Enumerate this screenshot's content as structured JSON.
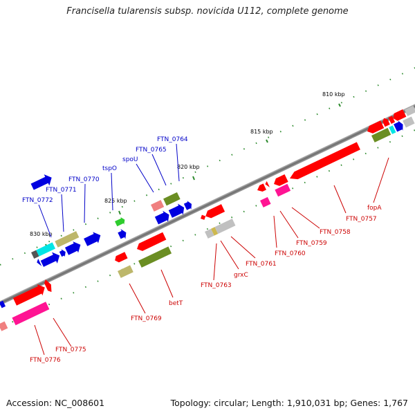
{
  "title": "Francisella tularensis subsp. novicida U112, complete genome",
  "footer": {
    "accession": "Accession: NC_008601",
    "topology": "Topology: circular; Length: 1,910,031 bp; Genes: 1,767"
  },
  "scale_labels": [
    "810 kbp",
    "815 kbp",
    "820 kbp",
    "825 kbp",
    "830 kbp"
  ],
  "upper_gene_labels": [
    "FTN_0764",
    "FTN_0765",
    "spoU",
    "tspO",
    "FTN_0770",
    "FTN_0771",
    "FTN_0772"
  ],
  "lower_gene_labels": [
    "fopA",
    "FTN_0757",
    "FTN_0758",
    "FTN_0759",
    "FTN_0760",
    "FTN_0761",
    "grxC",
    "FTN_0763",
    "betT",
    "FTN_0769",
    "FTN_0775",
    "FTN_0776"
  ],
  "colors": {
    "upper_label": "#0000c8",
    "lower_label": "#cc0000",
    "backbone": "#808080",
    "tick": "#2e8b2e"
  }
}
